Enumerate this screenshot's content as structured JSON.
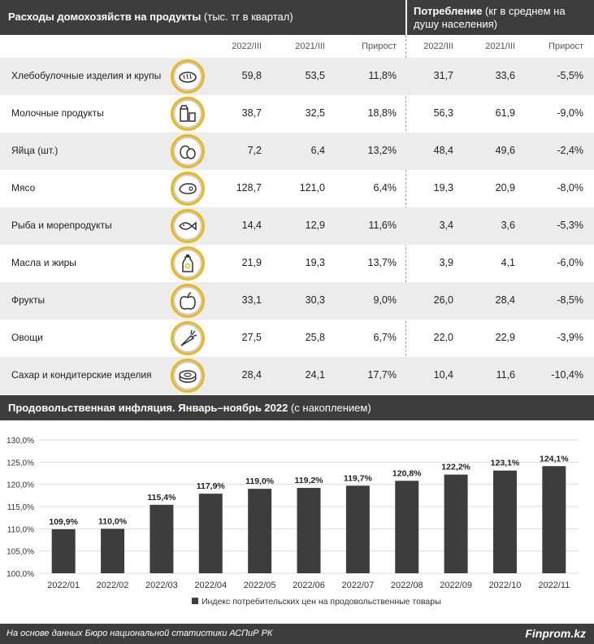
{
  "table": {
    "left_title_bold": "Расходы домохозяйств на продукты",
    "left_title_rest": " (тыс. тг в квартал)",
    "right_title_bold": "Потребление",
    "right_title_rest": " (кг в среднем на душу населения)",
    "columns": [
      "2022/III",
      "2021/III",
      "Прирост",
      "2022/III",
      "2021/III",
      "Прирост"
    ],
    "rows": [
      {
        "name": "Хлебобулочные изделия и крупы",
        "icon": "bread-icon",
        "v": [
          "59,8",
          "53,5",
          "11,8%",
          "31,7",
          "33,6",
          "-5,5%"
        ]
      },
      {
        "name": "Молочные продукты",
        "icon": "milk-icon",
        "v": [
          "38,7",
          "32,5",
          "18,8%",
          "56,3",
          "61,9",
          "-9,0%"
        ]
      },
      {
        "name": "Яйца (шт.)",
        "icon": "eggs-icon",
        "v": [
          "7,2",
          "6,4",
          "13,2%",
          "48,4",
          "49,6",
          "-2,4%"
        ]
      },
      {
        "name": "Мясо",
        "icon": "meat-icon",
        "v": [
          "128,7",
          "121,0",
          "6,4%",
          "19,3",
          "20,9",
          "-8,0%"
        ]
      },
      {
        "name": "Рыба и морепродукты",
        "icon": "fish-icon",
        "v": [
          "14,4",
          "12,9",
          "11,6%",
          "3,4",
          "3,6",
          "-5,3%"
        ]
      },
      {
        "name": "Масла и жиры",
        "icon": "oil-icon",
        "v": [
          "21,9",
          "19,3",
          "13,7%",
          "3,9",
          "4,1",
          "-6,0%"
        ]
      },
      {
        "name": "Фрукты",
        "icon": "apple-icon",
        "v": [
          "33,1",
          "30,3",
          "9,0%",
          "26,0",
          "28,4",
          "-8,5%"
        ]
      },
      {
        "name": "Овощи",
        "icon": "carrot-icon",
        "v": [
          "27,5",
          "25,8",
          "6,7%",
          "22,0",
          "22,9",
          "-3,9%"
        ]
      },
      {
        "name": "Сахар и кондитерские изделия",
        "icon": "cake-icon",
        "v": [
          "28,4",
          "24,1",
          "17,7%",
          "10,4",
          "11,6",
          "-10,4%"
        ]
      }
    ]
  },
  "section2": {
    "title_bold": "Продовольственная инфляция. Январь–ноябрь 2022",
    "title_rest": " (с накоплением)"
  },
  "chart_data": {
    "type": "bar",
    "title": "Продовольственная инфляция. Январь–ноябрь 2022 (с накоплением)",
    "categories": [
      "2022/01",
      "2022/02",
      "2022/03",
      "2022/04",
      "2022/05",
      "2022/06",
      "2022/07",
      "2022/08",
      "2022/09",
      "2022/10",
      "2022/11"
    ],
    "series": [
      {
        "name": "Индекс потребительских цен на продовольственные товары",
        "values": [
          109.9,
          110.0,
          115.4,
          117.9,
          119.0,
          119.2,
          119.7,
          120.8,
          122.2,
          123.1,
          124.1
        ],
        "labels": [
          "109,9%",
          "110,0%",
          "115,4%",
          "117,9%",
          "119,0%",
          "119,2%",
          "119,7%",
          "120,8%",
          "122,2%",
          "123,1%",
          "124,1%"
        ]
      }
    ],
    "ylim": [
      100,
      130
    ],
    "yticks": [
      100,
      105,
      110,
      115,
      120,
      125,
      130
    ],
    "ytick_labels": [
      "100,0%",
      "105,0%",
      "110,0%",
      "115,0%",
      "120,0%",
      "125,0%",
      "130,0%"
    ],
    "grid": true,
    "legend_position": "bottom",
    "bar_color": "#3d3d3d"
  },
  "footer": {
    "source": "На основе данных Бюро национальной статистики АСПиР РК",
    "brand": "Finprom.kz"
  },
  "colors": {
    "header_bg": "#3d3d3d",
    "row_shade": "#ececec",
    "icon_ring": "#e9b81b"
  }
}
